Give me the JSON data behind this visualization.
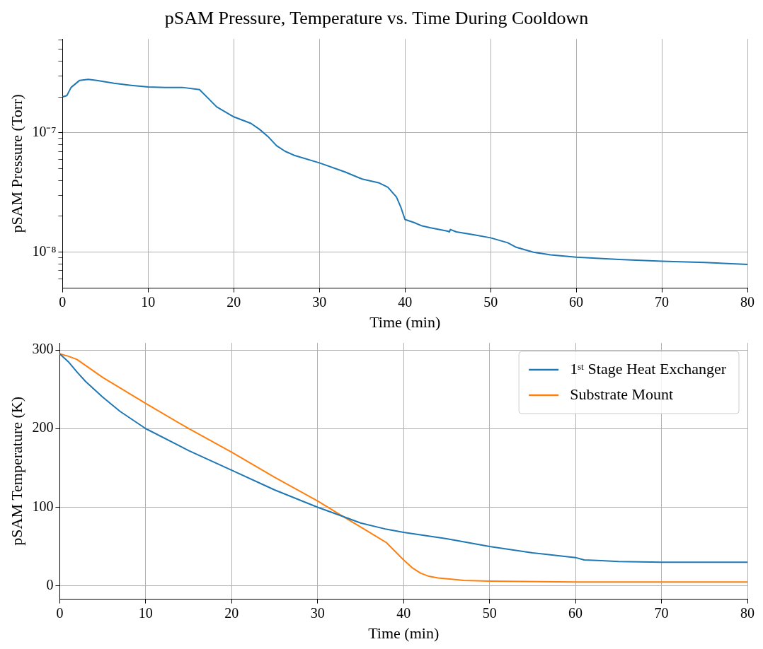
{
  "chart_data": [
    {
      "type": "line",
      "title": "pSAM Pressure, Temperature vs. Time During Cooldown",
      "xlabel": "Time (min)",
      "ylabel": "pSAM Pressure (Torr)",
      "log": "y",
      "grid": true,
      "xlim": [
        0,
        80
      ],
      "xticks": [
        0,
        10,
        20,
        30,
        40,
        50,
        60,
        70,
        80
      ],
      "ylim": [
        5e-09,
        6.1e-07
      ],
      "yticks": [
        {
          "value": 6e-09,
          "label": null
        },
        {
          "value": 7e-09,
          "label": null
        },
        {
          "value": 8e-09,
          "label": null
        },
        {
          "value": 9e-09,
          "label": null
        },
        {
          "value": 1e-08,
          "label": "10⁻⁸"
        },
        {
          "value": 2e-08,
          "label": null
        },
        {
          "value": 3e-08,
          "label": null
        },
        {
          "value": 4e-08,
          "label": null
        },
        {
          "value": 5e-08,
          "label": null
        },
        {
          "value": 6e-08,
          "label": null
        },
        {
          "value": 7e-08,
          "label": null
        },
        {
          "value": 8e-08,
          "label": null
        },
        {
          "value": 9e-08,
          "label": null
        },
        {
          "value": 1e-07,
          "label": "10⁻⁷"
        },
        {
          "value": 2e-07,
          "label": null
        },
        {
          "value": 3e-07,
          "label": null
        },
        {
          "value": 4e-07,
          "label": null
        },
        {
          "value": 5e-07,
          "label": null
        },
        {
          "value": 6e-07,
          "label": null
        }
      ],
      "series": [
        {
          "color": "#1f77b4",
          "x": [
            0,
            0.5,
            1,
            2,
            3,
            4,
            6,
            8,
            10,
            12,
            14,
            16,
            17,
            18,
            20,
            22,
            23,
            24,
            25,
            26,
            27,
            30,
            33,
            35,
            37,
            38,
            39,
            39.5,
            40,
            41,
            42,
            43,
            45,
            45.2,
            45.3,
            46,
            48,
            50,
            52,
            53,
            55,
            57,
            60,
            65,
            70,
            75,
            80
          ],
          "values": [
            2e-07,
            2.05e-07,
            2.4e-07,
            2.75e-07,
            2.8e-07,
            2.75e-07,
            2.6e-07,
            2.5e-07,
            2.42e-07,
            2.4e-07,
            2.4e-07,
            2.3e-07,
            1.95e-07,
            1.65e-07,
            1.36e-07,
            1.2e-07,
            1.07e-07,
            9.3e-08,
            7.8e-08,
            7e-08,
            6.5e-08,
            5.6e-08,
            4.7e-08,
            4.1e-08,
            3.8e-08,
            3.5e-08,
            2.9e-08,
            2.4e-08,
            1.88e-08,
            1.78e-08,
            1.66e-08,
            1.6e-08,
            1.5e-08,
            1.48e-08,
            1.55e-08,
            1.48e-08,
            1.4e-08,
            1.32e-08,
            1.2e-08,
            1.1e-08,
            1e-08,
            9.5e-09,
            9.1e-09,
            8.7e-09,
            8.4e-09,
            8.2e-09,
            7.9e-09
          ]
        }
      ]
    },
    {
      "type": "line",
      "xlabel": "Time (min)",
      "ylabel": "pSAM Temperature (K)",
      "grid": true,
      "legend": "top right",
      "xlim": [
        0,
        80
      ],
      "xticks": [
        0,
        10,
        20,
        30,
        40,
        50,
        60,
        70,
        80
      ],
      "ylim": [
        -17,
        309
      ],
      "yticks": [
        0,
        100,
        200,
        300
      ],
      "series": [
        {
          "name": "1ˢᵗ Stage Heat Exchanger",
          "color": "#1f77b4",
          "x": [
            0,
            1,
            2,
            3,
            5,
            7,
            10,
            15,
            20,
            25,
            30,
            33,
            35,
            38,
            40,
            45,
            50,
            55,
            60,
            61,
            63,
            65,
            70,
            75,
            80
          ],
          "values": [
            295,
            285,
            272,
            260,
            240,
            222,
            200,
            172,
            147,
            122,
            100,
            88,
            80,
            72,
            68,
            60,
            50,
            42,
            36,
            33,
            32,
            31,
            30,
            30,
            30
          ]
        },
        {
          "name": "Substrate Mount",
          "color": "#ff7f0e",
          "x": [
            0,
            1,
            2,
            5,
            10,
            15,
            20,
            25,
            30,
            33,
            35,
            38,
            40,
            41,
            42,
            43,
            44,
            46,
            47,
            50,
            60,
            70,
            80
          ],
          "values": [
            295,
            292,
            288,
            265,
            232,
            200,
            170,
            138,
            108,
            88,
            75,
            55,
            33,
            23,
            16,
            12,
            10,
            8,
            7,
            6,
            5,
            5,
            5
          ]
        }
      ]
    }
  ]
}
